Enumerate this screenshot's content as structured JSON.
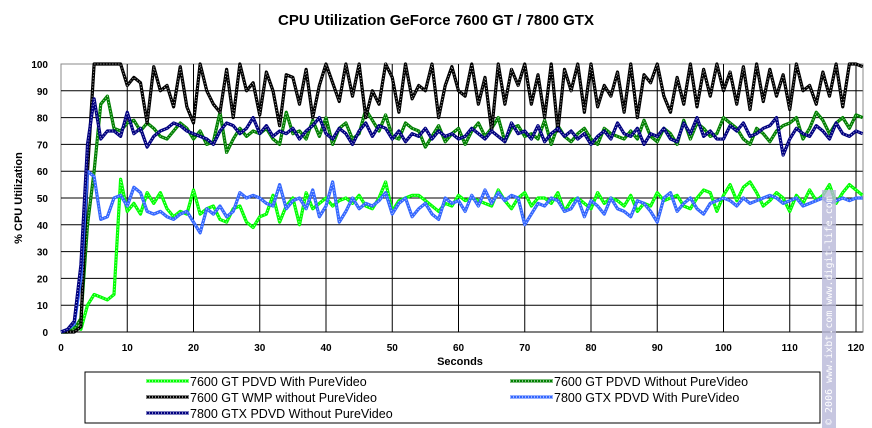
{
  "chart_data": {
    "type": "line",
    "title": "CPU Utilization GeForce 7600 GT / 7800 GTX",
    "xlabel": "Seconds",
    "ylabel": "% CPU Utilization",
    "xlim": [
      0,
      121
    ],
    "ylim": [
      0,
      100
    ],
    "xticks": [
      0,
      10,
      20,
      30,
      40,
      50,
      60,
      70,
      80,
      90,
      100,
      110,
      120
    ],
    "yticks": [
      0,
      10,
      20,
      30,
      40,
      50,
      60,
      70,
      80,
      90,
      100
    ],
    "grid": true,
    "legend_position": "bottom",
    "x_step": 1,
    "series": [
      {
        "name": "7600 GT PDVD With PureVideo",
        "color": "#00ff00",
        "values": [
          0,
          0,
          2,
          1,
          10,
          14,
          13,
          12,
          14,
          57,
          45,
          48,
          44,
          52,
          48,
          52,
          46,
          43,
          45,
          44,
          53,
          44,
          46,
          47,
          42,
          41,
          46,
          47,
          41,
          39,
          43,
          44,
          51,
          41,
          47,
          50,
          40,
          52,
          46,
          48,
          50,
          47,
          49,
          50,
          48,
          51,
          47,
          46,
          50,
          56,
          45,
          49,
          50,
          51,
          51,
          49,
          47,
          45,
          48,
          47,
          51,
          49,
          50,
          49,
          48,
          47,
          53,
          49,
          46,
          50,
          52,
          47,
          50,
          50,
          48,
          52,
          45,
          49,
          50,
          48,
          46,
          52,
          48,
          50,
          49,
          47,
          51,
          45,
          48,
          47,
          52,
          49,
          50,
          51,
          47,
          46,
          50,
          53,
          52,
          45,
          51,
          55,
          49,
          54,
          56,
          52,
          47,
          49,
          52,
          50,
          45,
          51,
          48,
          53,
          49,
          51,
          55,
          48,
          52,
          55,
          53,
          51
        ]
      },
      {
        "name": "7600 GT PDVD Without PureVideo",
        "color": "#008000",
        "values": [
          0,
          0,
          1,
          5,
          40,
          60,
          85,
          88,
          76,
          75,
          78,
          79,
          75,
          78,
          76,
          73,
          72,
          75,
          78,
          76,
          72,
          75,
          70,
          71,
          82,
          67,
          72,
          76,
          73,
          75,
          74,
          76,
          72,
          70,
          82,
          74,
          75,
          72,
          79,
          73,
          80,
          70,
          76,
          78,
          72,
          74,
          83,
          79,
          75,
          81,
          73,
          72,
          78,
          76,
          75,
          69,
          73,
          77,
          71,
          74,
          76,
          70,
          75,
          78,
          73,
          76,
          80,
          71,
          76,
          77,
          73,
          74,
          72,
          79,
          70,
          77,
          73,
          71,
          74,
          76,
          72,
          70,
          76,
          74,
          73,
          72,
          75,
          72,
          79,
          73,
          71,
          76,
          74,
          70,
          79,
          72,
          78,
          76,
          73,
          74,
          80,
          78,
          76,
          72,
          70,
          76,
          74,
          71,
          75,
          77,
          78,
          80,
          72,
          76,
          82,
          79,
          74,
          78,
          80,
          76,
          81,
          80
        ]
      },
      {
        "name": "7600 GT WMP without PureVideo",
        "color": "#000000",
        "values": [
          0,
          0,
          0,
          2,
          60,
          100,
          100,
          100,
          100,
          100,
          92,
          95,
          93,
          78,
          99,
          90,
          92,
          84,
          99,
          84,
          78,
          100,
          90,
          85,
          82,
          98,
          80,
          100,
          90,
          93,
          81,
          97,
          90,
          77,
          96,
          95,
          85,
          98,
          80,
          92,
          100,
          93,
          86,
          100,
          88,
          100,
          80,
          90,
          85,
          100,
          95,
          82,
          100,
          87,
          92,
          90,
          100,
          80,
          92,
          99,
          90,
          88,
          100,
          85,
          95,
          75,
          100,
          85,
          98,
          92,
          100,
          85,
          96,
          80,
          100,
          75,
          98,
          90,
          100,
          82,
          100,
          84,
          92,
          88,
          97,
          82,
          100,
          80,
          96,
          93,
          100,
          88,
          82,
          95,
          85,
          100,
          84,
          98,
          88,
          100,
          90,
          97,
          85,
          99,
          83,
          100,
          86,
          98,
          88,
          96,
          83,
          100,
          90,
          92,
          85,
          97,
          88,
          100,
          84,
          100,
          100,
          99
        ]
      },
      {
        "name": "7800 GTX PDVD With PureVideo",
        "color": "#3366ff",
        "values": [
          0,
          1,
          3,
          20,
          60,
          58,
          42,
          43,
          50,
          51,
          47,
          54,
          52,
          45,
          44,
          45,
          43,
          42,
          44,
          45,
          41,
          37,
          46,
          44,
          47,
          43,
          45,
          52,
          50,
          51,
          50,
          48,
          47,
          55,
          46,
          49,
          50,
          46,
          53,
          43,
          47,
          56,
          41,
          45,
          50,
          46,
          48,
          47,
          49,
          52,
          44,
          48,
          50,
          43,
          46,
          48,
          44,
          42,
          50,
          48,
          49,
          45,
          51,
          47,
          53,
          48,
          52,
          49,
          51,
          50,
          40,
          44,
          48,
          47,
          50,
          49,
          45,
          46,
          50,
          43,
          49,
          47,
          44,
          50,
          46,
          45,
          43,
          49,
          48,
          45,
          41,
          50,
          52,
          45,
          48,
          50,
          46,
          44,
          48,
          49,
          50,
          49,
          47,
          50,
          48,
          49,
          50,
          51,
          50,
          48,
          49,
          50,
          47,
          48,
          49,
          50,
          48,
          49,
          50,
          49,
          50,
          50
        ]
      },
      {
        "name": "7800 GTX PDVD Without PureVideo",
        "color": "#000080",
        "values": [
          0,
          1,
          4,
          25,
          70,
          87,
          72,
          75,
          75,
          73,
          82,
          74,
          76,
          69,
          73,
          75,
          76,
          78,
          77,
          75,
          74,
          73,
          72,
          70,
          75,
          78,
          77,
          74,
          76,
          80,
          74,
          77,
          73,
          75,
          74,
          76,
          72,
          75,
          77,
          80,
          74,
          72,
          76,
          74,
          70,
          75,
          78,
          73,
          77,
          76,
          72,
          75,
          71,
          74,
          73,
          76,
          72,
          75,
          73,
          74,
          72,
          73,
          76,
          74,
          72,
          75,
          73,
          71,
          78,
          74,
          75,
          72,
          77,
          71,
          74,
          76,
          73,
          75,
          72,
          74,
          70,
          73,
          75,
          72,
          78,
          74,
          73,
          76,
          70,
          74,
          73,
          76,
          72,
          71,
          78,
          74,
          80,
          73,
          75,
          72,
          72,
          77,
          75,
          78,
          73,
          74,
          76,
          77,
          80,
          66,
          72,
          76,
          74,
          73,
          77,
          75,
          72,
          78,
          74,
          73,
          75,
          74
        ]
      }
    ]
  },
  "watermark": "© 2006 www.ixbt.com www.digit-life.com"
}
